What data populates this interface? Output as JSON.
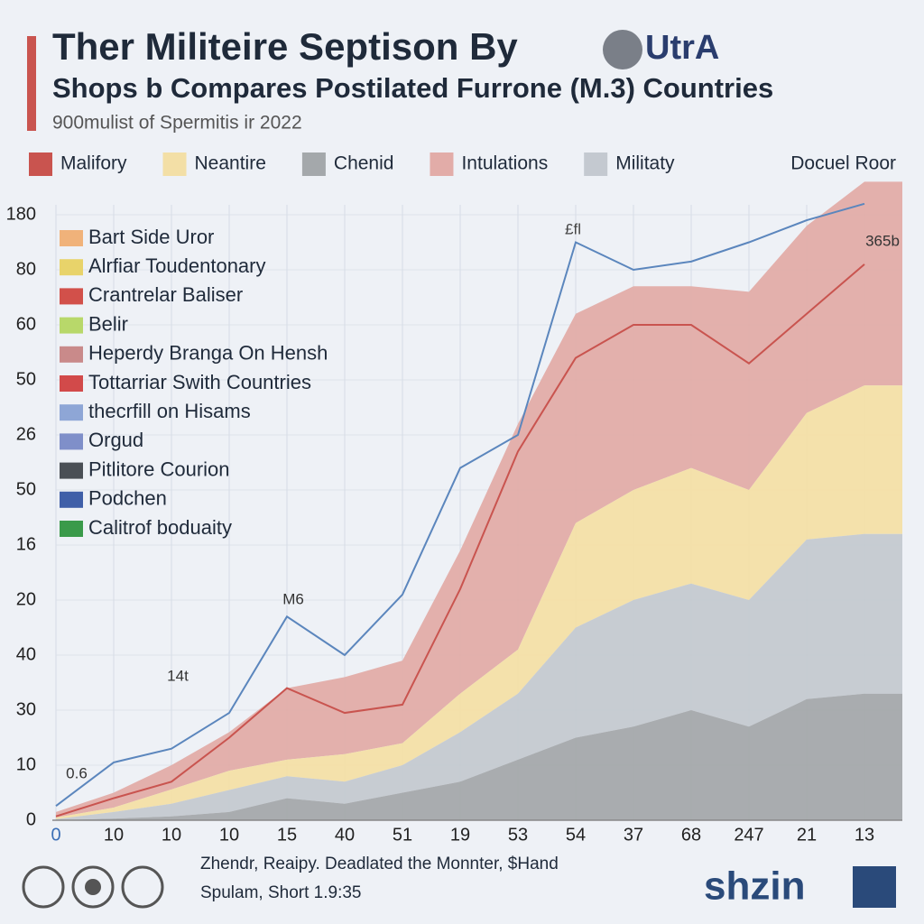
{
  "chart_data": {
    "type": "stacked-area",
    "title": "Ther Militeire Septison By",
    "title_badge": "UtrA",
    "subtitle": "Shops b Compares Postilated Furrone (M.3) Countries",
    "source": "900mulist of Spermitis ir 2022",
    "legend_note": "Docuel Roor",
    "categories": [
      "0",
      "10",
      "10",
      "10",
      "15",
      "40",
      "51",
      "19",
      "53",
      "54",
      "37",
      "68",
      "247",
      "21",
      "13"
    ],
    "series": [
      {
        "name": "Malifory",
        "color": "#c9544f",
        "kind": "line",
        "values": [
          0.7,
          4,
          7,
          15,
          24,
          19.5,
          21,
          42,
          67,
          84,
          90,
          90,
          83,
          92,
          101
        ]
      },
      {
        "name": "Neantire",
        "color": "#f3dfa6",
        "kind": "area",
        "stack_level": 3,
        "values": [
          0.3,
          0.8,
          2.6,
          3.5,
          3,
          5,
          4,
          7,
          8,
          19,
          20,
          21,
          20,
          23,
          27
        ]
      },
      {
        "name": "Chenid",
        "color": "#a4a8ab",
        "kind": "area",
        "stack_level": 1,
        "values": [
          0,
          0.3,
          0.7,
          1.5,
          4,
          3,
          5,
          7,
          11,
          15,
          17,
          20,
          17,
          22,
          23
        ]
      },
      {
        "name": "Intulations",
        "color": "#e2aca8",
        "kind": "area",
        "stack_level": 4,
        "values": [
          1,
          2.7,
          4.4,
          7,
          13,
          14,
          15,
          26,
          41,
          38,
          37,
          33,
          36,
          34,
          37
        ]
      },
      {
        "name": "Militaty",
        "color": "#c4c9d0",
        "kind": "area",
        "stack_level": 2,
        "values": [
          0.2,
          1.2,
          2.3,
          4,
          4,
          4,
          5,
          9,
          12,
          20,
          23,
          23,
          23,
          29,
          29
        ]
      },
      {
        "color": "#5b86bd",
        "kind": "line",
        "values": [
          2.6,
          10.5,
          13,
          19.5,
          37,
          30,
          41,
          64,
          70,
          105,
          100,
          101.5,
          105,
          109,
          112
        ]
      }
    ],
    "ylim": [
      0,
      120
    ],
    "yticks": [
      0,
      10,
      {
        "value": 20,
        "label": "30"
      },
      {
        "value": 30,
        "label": "40"
      },
      {
        "value": 40,
        "label": "20"
      },
      {
        "value": 50,
        "label": "16"
      },
      {
        "value": 60,
        "label": "50"
      },
      {
        "value": 70,
        "label": "26"
      },
      {
        "value": 80,
        "label": "50"
      },
      {
        "value": 90,
        "label": "60"
      },
      {
        "value": 100,
        "label": "80"
      },
      {
        "value": 110,
        "label": "180"
      }
    ],
    "grid": true,
    "annotations": [
      "£fl",
      "365b",
      "M6",
      "14t",
      "0.6"
    ],
    "inset_legend": [
      {
        "label": "Bart Side Uror",
        "color": "#f0b27a"
      },
      {
        "label": "Alrfiar Toudentonary",
        "color": "#e8d36a"
      },
      {
        "label": "Crantrelar Baliser",
        "color": "#d2504a"
      },
      {
        "label": "Belir",
        "color": "#b8d86a"
      },
      {
        "label": "Heperdy Branga On Hensh",
        "color": "#c98a8a"
      },
      {
        "label": "Tottarriar Swith Countries",
        "color": "#d24a4a"
      },
      {
        "label": "thecrfill on Hisams",
        "color": "#8ea6d6"
      },
      {
        "label": "Orgud",
        "color": "#7f8fc9"
      },
      {
        "label": "Pitlitore Courion",
        "color": "#4a4f55"
      },
      {
        "label": "Podchen",
        "color": "#3f5fa8"
      },
      {
        "label": "Calitrof boduaity",
        "color": "#3a9a4a"
      }
    ],
    "footer": [
      "Zhendr, Reaipy. Deadlated the Monnter, $Hand",
      "Spulam, Short 1.9:35"
    ],
    "logo": "shzin"
  }
}
